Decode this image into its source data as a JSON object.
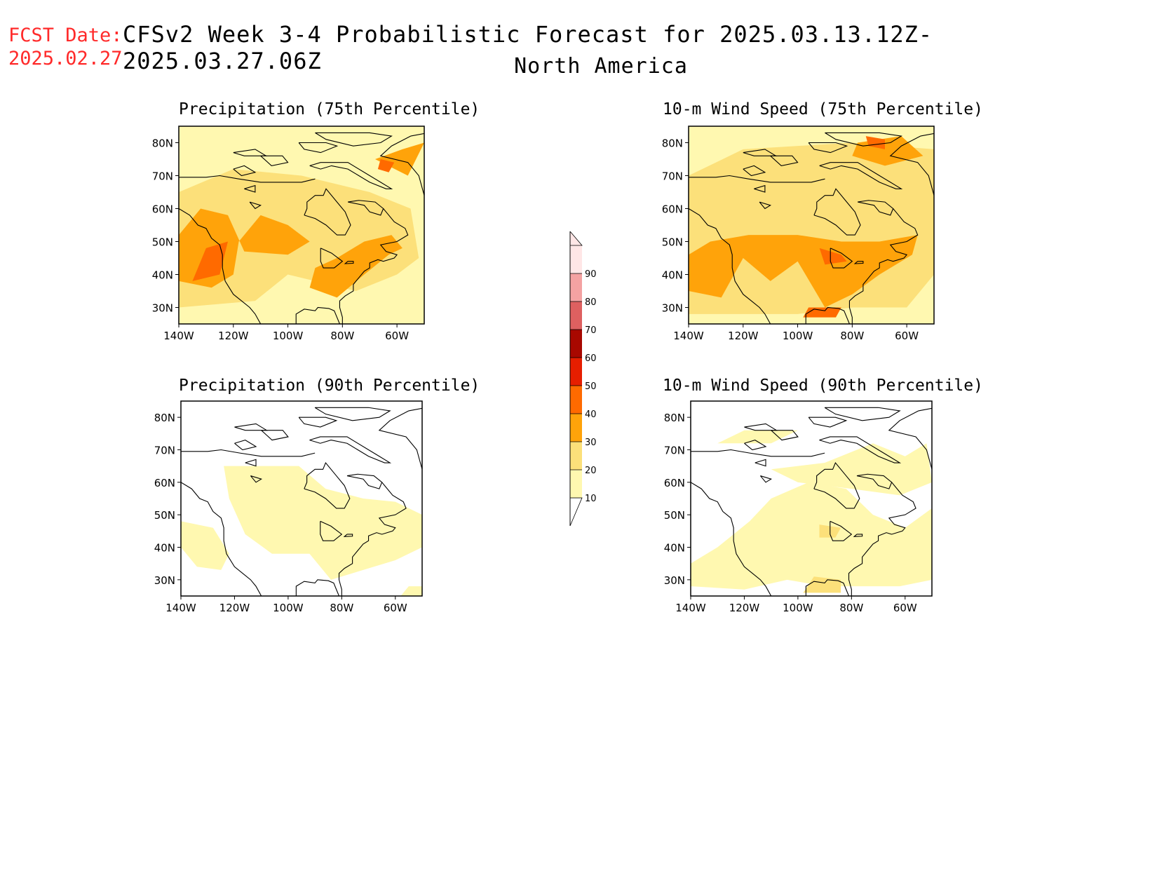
{
  "header": {
    "fcst_label": "FCST Date:",
    "fcst_date": "2025.02.27",
    "title": "CFSv2 Week 3-4 Probabilistic Forecast for 2025.03.13.12Z-2025.03.27.06Z",
    "region": "North America"
  },
  "map_axes": {
    "lat_labels": [
      "80N",
      "70N",
      "60N",
      "50N",
      "40N",
      "30N"
    ],
    "lon_labels": [
      "140W",
      "120W",
      "100W",
      "80W",
      "60W"
    ]
  },
  "panels": [
    {
      "title": "Precipitation (75th Percentile)",
      "field": "precip75"
    },
    {
      "title": "10-m Wind Speed (75th Percentile)",
      "field": "wind75"
    },
    {
      "title": "Precipitation (90th Percentile)",
      "field": "precip90"
    },
    {
      "title": "10-m Wind Speed (90th Percentile)",
      "field": "wind90"
    }
  ],
  "colorbar": {
    "levels": [
      "10",
      "20",
      "30",
      "40",
      "50",
      "60",
      "70",
      "80",
      "90"
    ],
    "colors": [
      "#fff8b0",
      "#fce07a",
      "#ffa30a",
      "#ff6a00",
      "#e61e00",
      "#a80800",
      "#de6060",
      "#f4a2a2",
      "#ffe6e6"
    ]
  }
}
